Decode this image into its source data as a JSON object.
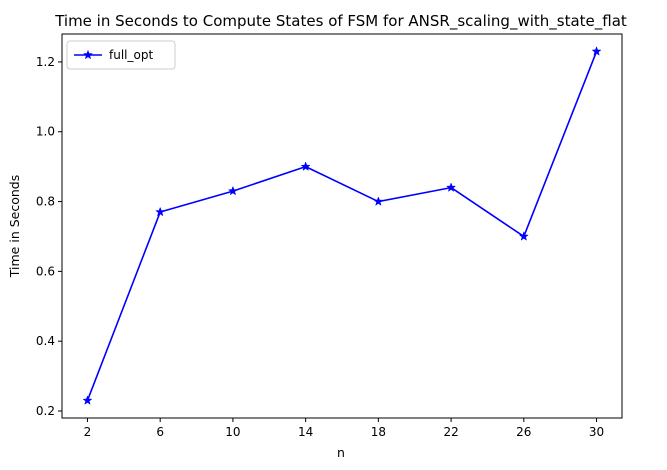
{
  "chart_data": {
    "type": "line",
    "title": "Time in Seconds to Compute States of FSM for ANSR_scaling_with_state_flat",
    "xlabel": "n",
    "ylabel": "Time in Seconds",
    "x": [
      2,
      6,
      10,
      14,
      18,
      22,
      26,
      30
    ],
    "x_ticks": [
      "2",
      "6",
      "10",
      "14",
      "18",
      "22",
      "26",
      "30"
    ],
    "y_ticks": [
      "0.2",
      "0.4",
      "0.6",
      "0.8",
      "1.0",
      "1.2"
    ],
    "xlim": [
      0.6,
      31.4
    ],
    "ylim": [
      0.18,
      1.28
    ],
    "series": [
      {
        "name": "full_opt",
        "color": "#0000ff",
        "marker": "star",
        "values": [
          0.23,
          0.77,
          0.83,
          0.9,
          0.8,
          0.84,
          0.7,
          1.23
        ]
      }
    ],
    "legend_position": "top-left",
    "grid": false
  }
}
